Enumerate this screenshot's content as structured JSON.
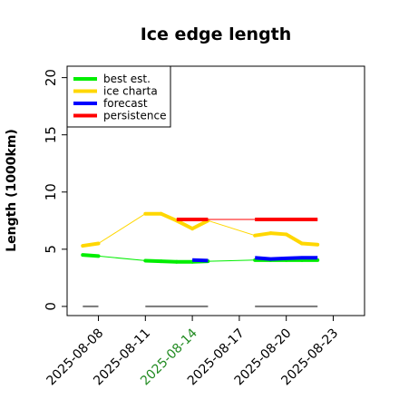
{
  "chart_data": {
    "type": "line",
    "title": "Ice edge length",
    "xlabel": "",
    "ylabel": "Length (1000km)",
    "xlim": [
      "2025-08-06",
      "2025-08-25"
    ],
    "ylim": [
      -0.8,
      21
    ],
    "yticks": [
      0,
      5,
      10,
      15,
      20
    ],
    "xticks": [
      {
        "label": "2025-08-08",
        "highlight": false
      },
      {
        "label": "2025-08-11",
        "highlight": false
      },
      {
        "label": "2025-08-14",
        "highlight": true
      },
      {
        "label": "2025-08-17",
        "highlight": false
      },
      {
        "label": "2025-08-20",
        "highlight": false
      },
      {
        "label": "2025-08-23",
        "highlight": false
      }
    ],
    "highlight_color": "#228b22",
    "grid": false,
    "legend_position": "top-left",
    "series": [
      {
        "name": "best est.",
        "color": "#00ee00",
        "points": [
          {
            "x": "2025-08-07",
            "y": 4.5
          },
          {
            "x": "2025-08-08",
            "y": 4.4
          },
          {
            "x": "2025-08-11",
            "y": 4.0
          },
          {
            "x": "2025-08-12",
            "y": 3.95
          },
          {
            "x": "2025-08-13",
            "y": 3.9
          },
          {
            "x": "2025-08-14",
            "y": 3.9
          },
          {
            "x": "2025-08-15",
            "y": 3.95
          },
          {
            "x": "2025-08-18",
            "y": 4.05
          },
          {
            "x": "2025-08-19",
            "y": 4.05
          },
          {
            "x": "2025-08-20",
            "y": 4.05
          },
          {
            "x": "2025-08-21",
            "y": 4.05
          },
          {
            "x": "2025-08-22",
            "y": 4.05
          }
        ]
      },
      {
        "name": "ice charta",
        "color": "#ffd700",
        "points": [
          {
            "x": "2025-08-07",
            "y": 5.3
          },
          {
            "x": "2025-08-08",
            "y": 5.5
          },
          {
            "x": "2025-08-11",
            "y": 8.1
          },
          {
            "x": "2025-08-12",
            "y": 8.1
          },
          {
            "x": "2025-08-13",
            "y": 7.5
          },
          {
            "x": "2025-08-14",
            "y": 6.8
          },
          {
            "x": "2025-08-15",
            "y": 7.5
          },
          {
            "x": "2025-08-18",
            "y": 6.2
          },
          {
            "x": "2025-08-19",
            "y": 6.4
          },
          {
            "x": "2025-08-20",
            "y": 6.3
          },
          {
            "x": "2025-08-21",
            "y": 5.5
          },
          {
            "x": "2025-08-22",
            "y": 5.4
          }
        ]
      },
      {
        "name": "forecast",
        "color": "#0000ff",
        "segments": [
          [
            {
              "x": "2025-08-14",
              "y": 4.05
            },
            {
              "x": "2025-08-15",
              "y": 4.0
            }
          ],
          [
            {
              "x": "2025-08-18",
              "y": 4.25
            },
            {
              "x": "2025-08-19",
              "y": 4.15
            },
            {
              "x": "2025-08-20",
              "y": 4.2
            },
            {
              "x": "2025-08-21",
              "y": 4.25
            },
            {
              "x": "2025-08-22",
              "y": 4.25
            }
          ]
        ]
      },
      {
        "name": "persistence",
        "color": "#ff0000",
        "points": [
          {
            "x": "2025-08-13",
            "y": 7.6
          },
          {
            "x": "2025-08-15",
            "y": 7.6
          },
          {
            "x": "2025-08-18",
            "y": 7.6
          },
          {
            "x": "2025-08-22",
            "y": 7.6
          }
        ]
      },
      {
        "color": "#777777",
        "segments": [
          [
            {
              "x": "2025-08-07",
              "y": 0
            },
            {
              "x": "2025-08-08",
              "y": 0
            }
          ],
          [
            {
              "x": "2025-08-11",
              "y": 0
            },
            {
              "x": "2025-08-15",
              "y": 0
            }
          ],
          [
            {
              "x": "2025-08-18",
              "y": 0
            },
            {
              "x": "2025-08-22",
              "y": 0
            }
          ]
        ]
      }
    ]
  }
}
